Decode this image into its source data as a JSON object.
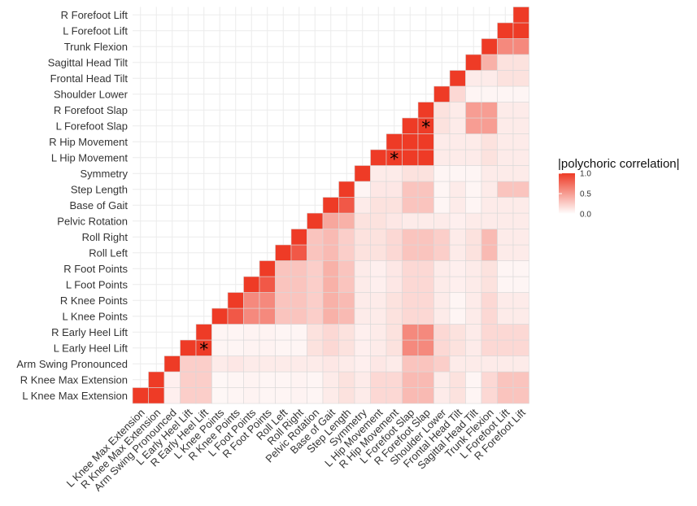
{
  "chart_data": {
    "type": "heatmap",
    "variables": [
      "L Knee Max Extension",
      "R Knee Max Extension",
      "Arm Swing Pronounced",
      "L Early Heel Lift",
      "R Early Heel Lift",
      "L Knee Points",
      "R Knee Points",
      "L Foot Points",
      "R Foot Points",
      "Roll Left",
      "Roll Right",
      "Pelvic Rotation",
      "Base of Gait",
      "Step Length",
      "Symmetry",
      "L Hip Movement",
      "R Hip Movement",
      "L Forefoot Slap",
      "R Forefoot Slap",
      "Shoulder Lower",
      "Frontal Head Tilt",
      "Sagittal Head Tilt",
      "Trunk Flexion",
      "L Forefoot Lift",
      "R Forefoot Lift"
    ],
    "matrix_note": "Lower triangle only: row i (y-axis, bottom to top) vs column j (x-axis, left to right), j >= i; diagonal = 1.0. Values are |polychoric correlation| read from color.",
    "values": [
      [
        1.0,
        1.0,
        0.08,
        0.25,
        0.25,
        0.04,
        0.05,
        0.06,
        0.05,
        0.05,
        0.06,
        0.05,
        0.1,
        0.15,
        0.1,
        0.2,
        0.2,
        0.35,
        0.35,
        0.1,
        0.15,
        0.05,
        0.2,
        0.3,
        0.3
      ],
      [
        null,
        1.0,
        0.08,
        0.25,
        0.25,
        0.04,
        0.05,
        0.06,
        0.05,
        0.05,
        0.06,
        0.05,
        0.1,
        0.15,
        0.1,
        0.2,
        0.2,
        0.35,
        0.35,
        0.1,
        0.15,
        0.05,
        0.2,
        0.3,
        0.3
      ],
      [
        null,
        null,
        1.0,
        0.25,
        0.25,
        0.1,
        0.12,
        0.1,
        0.1,
        0.1,
        0.1,
        0.1,
        0.12,
        0.1,
        0.08,
        0.12,
        0.1,
        0.3,
        0.3,
        0.25,
        0.1,
        0.1,
        0.1,
        0.1,
        0.1
      ],
      [
        null,
        null,
        null,
        1.0,
        1.0,
        0.05,
        0.05,
        0.06,
        0.06,
        0.05,
        0.05,
        0.15,
        0.2,
        0.15,
        0.08,
        0.1,
        0.15,
        0.6,
        0.6,
        0.2,
        0.15,
        0.1,
        0.2,
        0.2,
        0.2
      ],
      [
        null,
        null,
        null,
        null,
        1.0,
        0.05,
        0.05,
        0.06,
        0.06,
        0.05,
        0.05,
        0.15,
        0.2,
        0.15,
        0.08,
        0.1,
        0.15,
        0.6,
        0.6,
        0.2,
        0.15,
        0.1,
        0.2,
        0.2,
        0.2
      ],
      [
        null,
        null,
        null,
        null,
        null,
        1.0,
        0.85,
        0.6,
        0.6,
        0.3,
        0.3,
        0.25,
        0.4,
        0.35,
        0.1,
        0.1,
        0.15,
        0.2,
        0.2,
        0.1,
        0.05,
        0.1,
        0.2,
        0.1,
        0.1
      ],
      [
        null,
        null,
        null,
        null,
        null,
        null,
        1.0,
        0.6,
        0.6,
        0.3,
        0.3,
        0.25,
        0.4,
        0.35,
        0.1,
        0.1,
        0.15,
        0.2,
        0.2,
        0.1,
        0.05,
        0.1,
        0.2,
        0.1,
        0.1
      ],
      [
        null,
        null,
        null,
        null,
        null,
        null,
        null,
        1.0,
        0.85,
        0.3,
        0.3,
        0.25,
        0.4,
        0.3,
        0.1,
        0.08,
        0.12,
        0.2,
        0.2,
        0.1,
        0.08,
        0.1,
        0.15,
        0.05,
        0.05
      ],
      [
        null,
        null,
        null,
        null,
        null,
        null,
        null,
        null,
        1.0,
        0.3,
        0.3,
        0.25,
        0.4,
        0.3,
        0.1,
        0.08,
        0.12,
        0.2,
        0.2,
        0.1,
        0.08,
        0.1,
        0.15,
        0.05,
        0.05
      ],
      [
        null,
        null,
        null,
        null,
        null,
        null,
        null,
        null,
        null,
        1.0,
        0.85,
        0.3,
        0.35,
        0.25,
        0.15,
        0.15,
        0.2,
        0.3,
        0.3,
        0.25,
        0.1,
        0.15,
        0.35,
        0.1,
        0.1
      ],
      [
        null,
        null,
        null,
        null,
        null,
        null,
        null,
        null,
        null,
        null,
        1.0,
        0.3,
        0.35,
        0.25,
        0.15,
        0.15,
        0.2,
        0.3,
        0.3,
        0.25,
        0.1,
        0.15,
        0.35,
        0.1,
        0.1
      ],
      [
        null,
        null,
        null,
        null,
        null,
        null,
        null,
        null,
        null,
        null,
        null,
        1.0,
        0.45,
        0.4,
        0.15,
        0.15,
        0.12,
        0.1,
        0.1,
        0.1,
        0.08,
        0.1,
        0.1,
        0.1,
        0.1
      ],
      [
        null,
        null,
        null,
        null,
        null,
        null,
        null,
        null,
        null,
        null,
        null,
        null,
        1.0,
        0.85,
        0.1,
        0.15,
        0.15,
        0.3,
        0.3,
        0.05,
        0.1,
        0.05,
        0.1,
        0.1,
        0.1
      ],
      [
        null,
        null,
        null,
        null,
        null,
        null,
        null,
        null,
        null,
        null,
        null,
        null,
        null,
        1.0,
        0.05,
        0.12,
        0.12,
        0.3,
        0.3,
        0.05,
        0.1,
        0.05,
        0.1,
        0.3,
        0.3
      ],
      [
        null,
        null,
        null,
        null,
        null,
        null,
        null,
        null,
        null,
        null,
        null,
        null,
        null,
        null,
        1.0,
        0.1,
        0.1,
        0.15,
        0.15,
        0.05,
        0.05,
        0.05,
        0.1,
        0.1,
        0.1
      ],
      [
        null,
        null,
        null,
        null,
        null,
        null,
        null,
        null,
        null,
        null,
        null,
        null,
        null,
        null,
        null,
        1.0,
        1.0,
        1.0,
        1.0,
        0.1,
        0.1,
        0.1,
        0.15,
        0.1,
        0.1
      ],
      [
        null,
        null,
        null,
        null,
        null,
        null,
        null,
        null,
        null,
        null,
        null,
        null,
        null,
        null,
        null,
        null,
        1.0,
        1.0,
        1.0,
        0.1,
        0.1,
        0.1,
        0.15,
        0.1,
        0.1
      ],
      [
        null,
        null,
        null,
        null,
        null,
        null,
        null,
        null,
        null,
        null,
        null,
        null,
        null,
        null,
        null,
        null,
        null,
        1.0,
        1.0,
        0.15,
        0.1,
        0.5,
        0.5,
        0.1,
        0.1
      ],
      [
        null,
        null,
        null,
        null,
        null,
        null,
        null,
        null,
        null,
        null,
        null,
        null,
        null,
        null,
        null,
        null,
        null,
        null,
        1.0,
        0.15,
        0.1,
        0.5,
        0.5,
        0.1,
        0.1
      ],
      [
        null,
        null,
        null,
        null,
        null,
        null,
        null,
        null,
        null,
        null,
        null,
        null,
        null,
        null,
        null,
        null,
        null,
        null,
        null,
        1.0,
        0.2,
        0.05,
        0.05,
        0.05,
        0.05
      ],
      [
        null,
        null,
        null,
        null,
        null,
        null,
        null,
        null,
        null,
        null,
        null,
        null,
        null,
        null,
        null,
        null,
        null,
        null,
        null,
        null,
        1.0,
        0.1,
        0.1,
        0.15,
        0.15
      ],
      [
        null,
        null,
        null,
        null,
        null,
        null,
        null,
        null,
        null,
        null,
        null,
        null,
        null,
        null,
        null,
        null,
        null,
        null,
        null,
        null,
        null,
        1.0,
        0.4,
        0.15,
        0.15
      ],
      [
        null,
        null,
        null,
        null,
        null,
        null,
        null,
        null,
        null,
        null,
        null,
        null,
        null,
        null,
        null,
        null,
        null,
        null,
        null,
        null,
        null,
        null,
        1.0,
        0.6,
        0.6
      ],
      [
        null,
        null,
        null,
        null,
        null,
        null,
        null,
        null,
        null,
        null,
        null,
        null,
        null,
        null,
        null,
        null,
        null,
        null,
        null,
        null,
        null,
        null,
        null,
        1.0,
        1.0
      ],
      [
        null,
        null,
        null,
        null,
        null,
        null,
        null,
        null,
        null,
        null,
        null,
        null,
        null,
        null,
        null,
        null,
        null,
        null,
        null,
        null,
        null,
        null,
        null,
        null,
        1.0
      ]
    ],
    "annotations": [
      {
        "text": "*",
        "row": "L Early Heel Lift",
        "col": "R Early Heel Lift"
      },
      {
        "text": "*",
        "row": "L Hip Movement",
        "col": "R Hip Movement"
      },
      {
        "text": "*",
        "row": "L Forefoot Slap",
        "col": "R Forefoot Slap"
      }
    ],
    "legend": {
      "title": "|polychoric correlation|",
      "ticks": [
        "1.0",
        "0.5",
        "0.0"
      ],
      "tick_values": [
        1.0,
        0.5,
        0.0
      ],
      "placement": "right",
      "color_low": "#ffffff",
      "color_high": "#ee3b26"
    },
    "grid": true
  }
}
